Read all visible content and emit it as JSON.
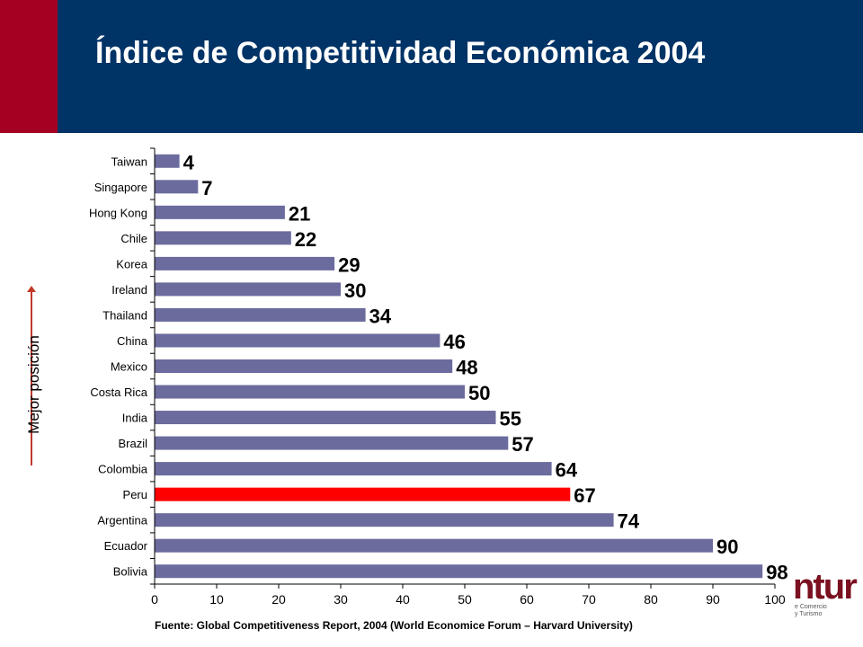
{
  "slide": {
    "title": "Índice de Competitividad Económica 2004",
    "side_label": "Mejor posición",
    "source": "Fuente: Global Competitiveness Report, 2004 (World Economice Forum – Harvard University)",
    "logo_text": "ntur",
    "logo_subtext_1": "e Comercio",
    "logo_subtext_2": "y Turismo"
  },
  "colors": {
    "header": "#003366",
    "header_accent": "#a50021",
    "bar": "#6b6b9e",
    "highlight_bar": "#ff0000",
    "arrow": "#c0392b"
  },
  "chart_data": {
    "type": "bar",
    "orientation": "horizontal",
    "categories": [
      "Taiwan",
      "Singapore",
      "Hong Kong",
      "Chile",
      "Korea",
      "Ireland",
      "Thailand",
      "China",
      "Mexico",
      "Costa Rica",
      "India",
      "Brazil",
      "Colombia",
      "Peru",
      "Argentina",
      "Ecuador",
      "Bolivia"
    ],
    "values": [
      4,
      7,
      21,
      22,
      29,
      30,
      34,
      46,
      48,
      50,
      55,
      57,
      64,
      67,
      74,
      90,
      98
    ],
    "highlight": "Peru",
    "xlim": [
      0,
      100
    ],
    "xticks": [
      0,
      10,
      20,
      30,
      40,
      50,
      60,
      70,
      80,
      90,
      100
    ],
    "data_labels": true,
    "grid": false
  }
}
